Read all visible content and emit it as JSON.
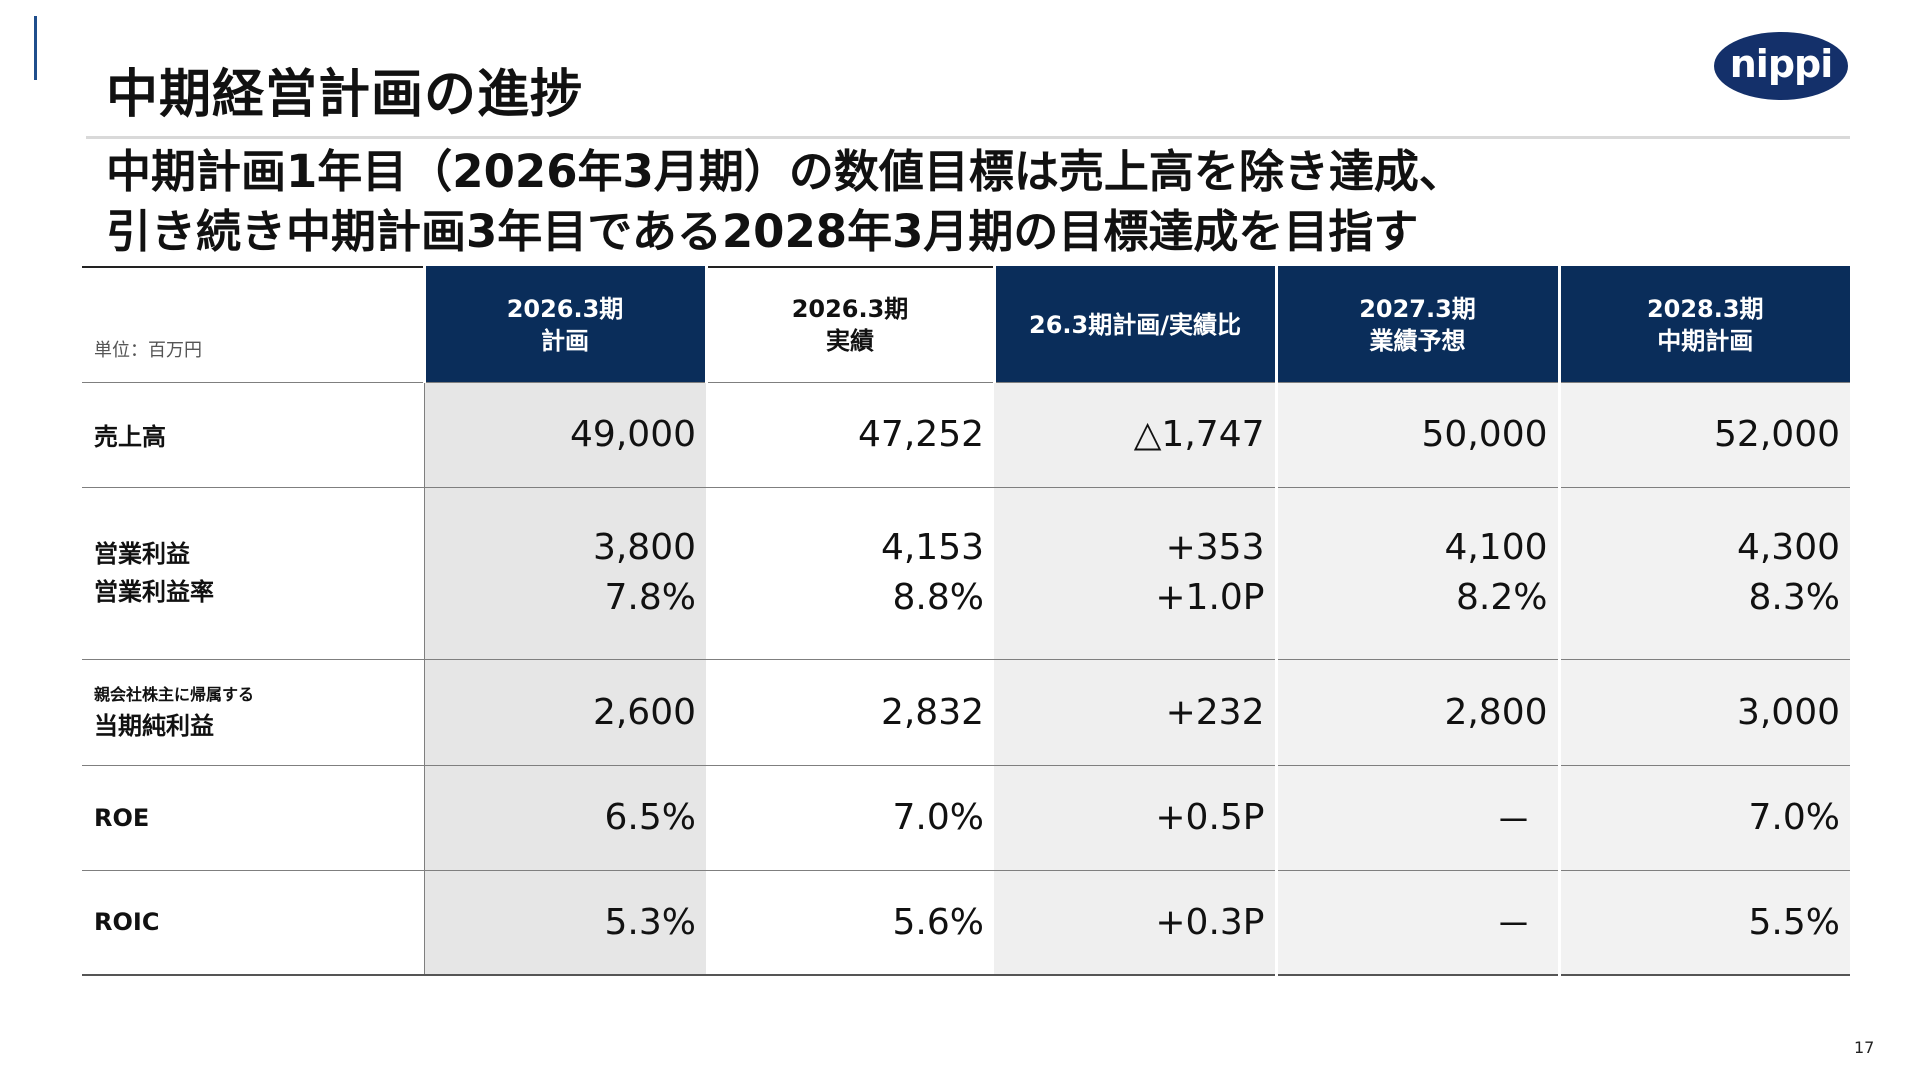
{
  "title": "中期経営計画の進捗",
  "logo_text": "nippi",
  "headline": {
    "line1": "中期計画1年目（2026年3月期）の数値目標は売上高を除き達成、",
    "line2": "引き続き中期計画3年目である2028年3月期の目標達成を目指す"
  },
  "table": {
    "unit": "単位：百万円",
    "headers": [
      {
        "line1": "2026.3期",
        "line2": "計画"
      },
      {
        "line1": "2026.3期",
        "line2": "実績"
      },
      {
        "line1": "26.3期計画/実績比",
        "line2": ""
      },
      {
        "line1": "2027.3期",
        "line2": "業績予想"
      },
      {
        "line1": "2028.3期",
        "line2": "中期計画"
      }
    ],
    "rows": {
      "sales": {
        "label": "売上高",
        "values": [
          "49,000",
          "47,252",
          "△1,747",
          "50,000",
          "52,000"
        ]
      },
      "operating": {
        "label1": "営業利益",
        "label2": "営業利益率",
        "values": [
          "3,800",
          "4,153",
          "+353",
          "4,100",
          "4,300"
        ],
        "rates": [
          "7.8%",
          "8.8%",
          "+1.0P",
          "8.2%",
          "8.3%"
        ]
      },
      "net_income": {
        "label1": "親会社株主に帰属する",
        "label2": "当期純利益",
        "values": [
          "2,600",
          "2,832",
          "+232",
          "2,800",
          "3,000"
        ]
      },
      "roe": {
        "label": "ROE",
        "values": [
          "6.5%",
          "7.0%",
          "+0.5P",
          "－",
          "7.0%"
        ]
      },
      "roic": {
        "label": "ROIC",
        "values": [
          "5.3%",
          "5.6%",
          "+0.3P",
          "－",
          "5.5%"
        ]
      }
    }
  },
  "page_number": "17",
  "colors": {
    "header_navy": "#0a2d5a",
    "logo_navy": "#14306a",
    "plan_col_gray": "#e6e6e6"
  }
}
